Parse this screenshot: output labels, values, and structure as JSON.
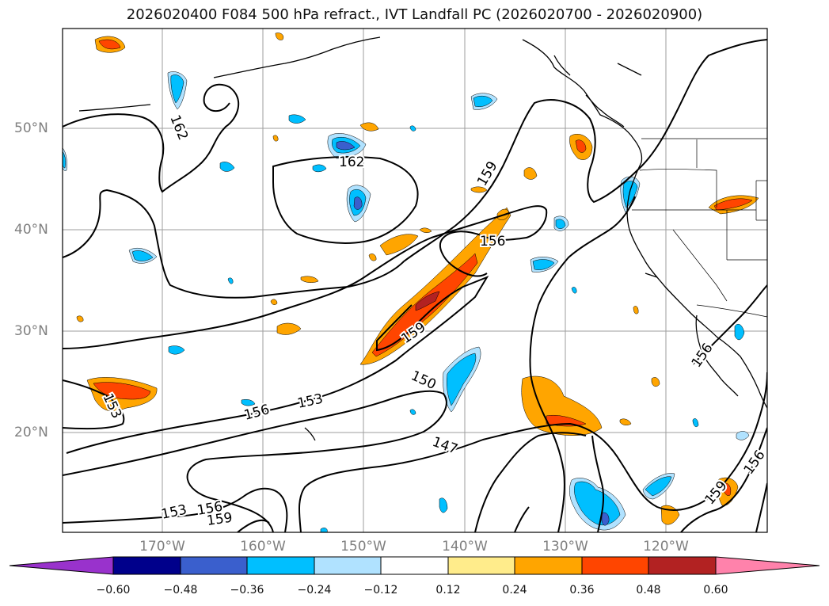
{
  "title": "2026020400 F084 500 hPa refract., IVT Landfall PC (2026020700 - 2026020900)",
  "lat_labels": [
    "50°N",
    "40°N",
    "30°N",
    "20°N"
  ],
  "lon_labels": [
    "170°W",
    "160°W",
    "150°W",
    "140°W",
    "130°W",
    "120°W"
  ],
  "contour_labels": [
    "162",
    "162",
    "159",
    "156",
    "159",
    "153",
    "156",
    "153",
    "150",
    "147",
    "156",
    "159",
    "156",
    "153",
    "156",
    "159"
  ],
  "colorbar": {
    "ticks": [
      "−0.60",
      "−0.48",
      "−0.36",
      "−0.24",
      "−0.12",
      "0.12",
      "0.24",
      "0.36",
      "0.48",
      "0.60"
    ],
    "colors": [
      "#9932cc",
      "#00008b",
      "#3a5fcd",
      "#00bfff",
      "#b0e2ff",
      "#ffffff",
      "#ffec8b",
      "#ffa500",
      "#ff4500",
      "#b22222",
      "#ff82ab"
    ]
  },
  "colors": {
    "frame": "#000000",
    "grid": "#9e9e9e",
    "coast": "#000000",
    "contour": "#000000"
  }
}
